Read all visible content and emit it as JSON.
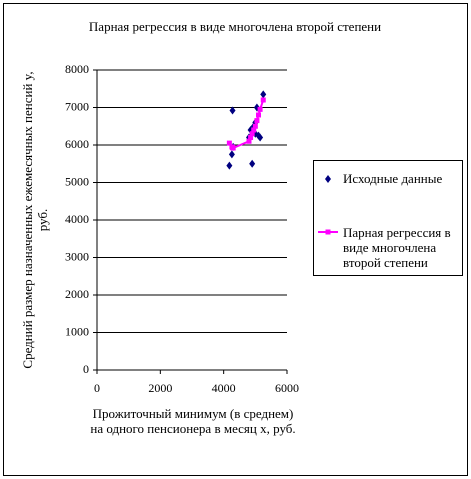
{
  "chart_data": {
    "type": "scatter",
    "title": "Парная регрессия в виде многочлена второй степени",
    "x_label": "Прожиточный минимум (в среднем) на одного пенсионера в месяц x, руб.",
    "y_label": "Средний размер назначенных ежемесячных пенсий y, руб.",
    "xlim": [
      0,
      6000
    ],
    "xticks": [
      0,
      2000,
      4000,
      6000
    ],
    "ylim": [
      0,
      8000
    ],
    "yticks": [
      0,
      1000,
      2000,
      3000,
      4000,
      5000,
      6000,
      7000,
      8000
    ],
    "grid": true,
    "series": [
      {
        "name": "Исходные данные",
        "color": "#000080",
        "mode": "markers",
        "x": [
          4180,
          4280,
          4260,
          4300,
          4900,
          4800,
          4850,
          4950,
          5000,
          5050,
          5100,
          5150,
          5250,
          5000,
          4900
        ],
        "values": [
          5450,
          6920,
          5750,
          5950,
          5500,
          6200,
          6400,
          6500,
          6600,
          7000,
          6250,
          6200,
          7350,
          6300,
          6350
        ]
      },
      {
        "name": "Парная регрессия в виде многочлена второй степени",
        "color": "#ff00ff",
        "mode": "lines+markers",
        "x": [
          4180,
          4260,
          4280,
          4300,
          4800,
          4850,
          4900,
          4950,
          5000,
          5050,
          5100,
          5150,
          5250
        ],
        "values": [
          6050,
          5950,
          5930,
          5920,
          6100,
          6200,
          6300,
          6400,
          6500,
          6650,
          6800,
          6950,
          7200
        ]
      }
    ]
  }
}
